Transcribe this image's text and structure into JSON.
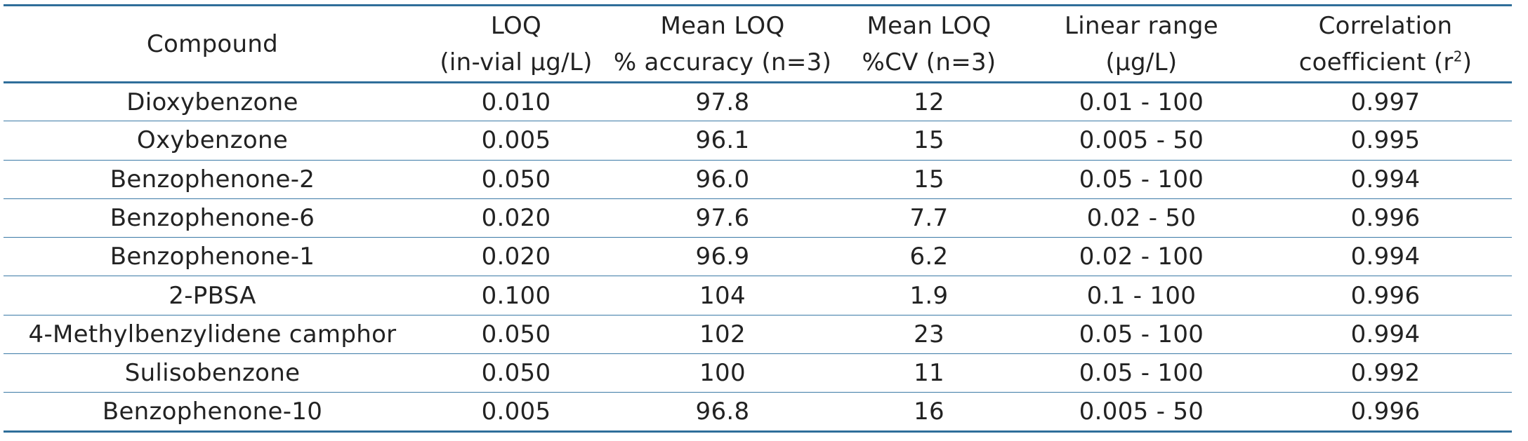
{
  "table": {
    "headers": [
      {
        "lines": [
          "Compound"
        ]
      },
      {
        "lines": [
          "LOQ",
          "(in-vial µg/L)"
        ]
      },
      {
        "lines": [
          "Mean LOQ",
          "% accuracy (n=3)"
        ]
      },
      {
        "lines": [
          "Mean LOQ",
          "%CV (n=3)"
        ]
      },
      {
        "lines": [
          "Linear range",
          "(µg/L)"
        ]
      },
      {
        "lines": [
          "Correlation",
          "coefficient (r",
          "2",
          ")"
        ]
      }
    ],
    "rows": [
      [
        "Dioxybenzone",
        "0.010",
        "97.8",
        "12",
        "0.01 - 100",
        "0.997"
      ],
      [
        "Oxybenzone",
        "0.005",
        "96.1",
        "15",
        "0.005 - 50",
        "0.995"
      ],
      [
        "Benzophenone-2",
        "0.050",
        "96.0",
        "15",
        "0.05 - 100",
        "0.994"
      ],
      [
        "Benzophenone-6",
        "0.020",
        "97.6",
        "7.7",
        "0.02 - 50",
        "0.996"
      ],
      [
        "Benzophenone-1",
        "0.020",
        "96.9",
        "6.2",
        "0.02 - 100",
        "0.994"
      ],
      [
        "2-PBSA",
        "0.100",
        "104",
        "1.9",
        "0.1 - 100",
        "0.996"
      ],
      [
        "4-Methylbenzylidene camphor",
        "0.050",
        "102",
        "23",
        "0.05 - 100",
        "0.994"
      ],
      [
        "Sulisobenzone",
        "0.050",
        "100",
        "11",
        "0.05 - 100",
        "0.992"
      ],
      [
        "Benzophenone-10",
        "0.005",
        "96.8",
        "16",
        "0.005 - 50",
        "0.996"
      ]
    ]
  },
  "colors": {
    "rule": "#2f6e9a",
    "text": "#222222"
  }
}
